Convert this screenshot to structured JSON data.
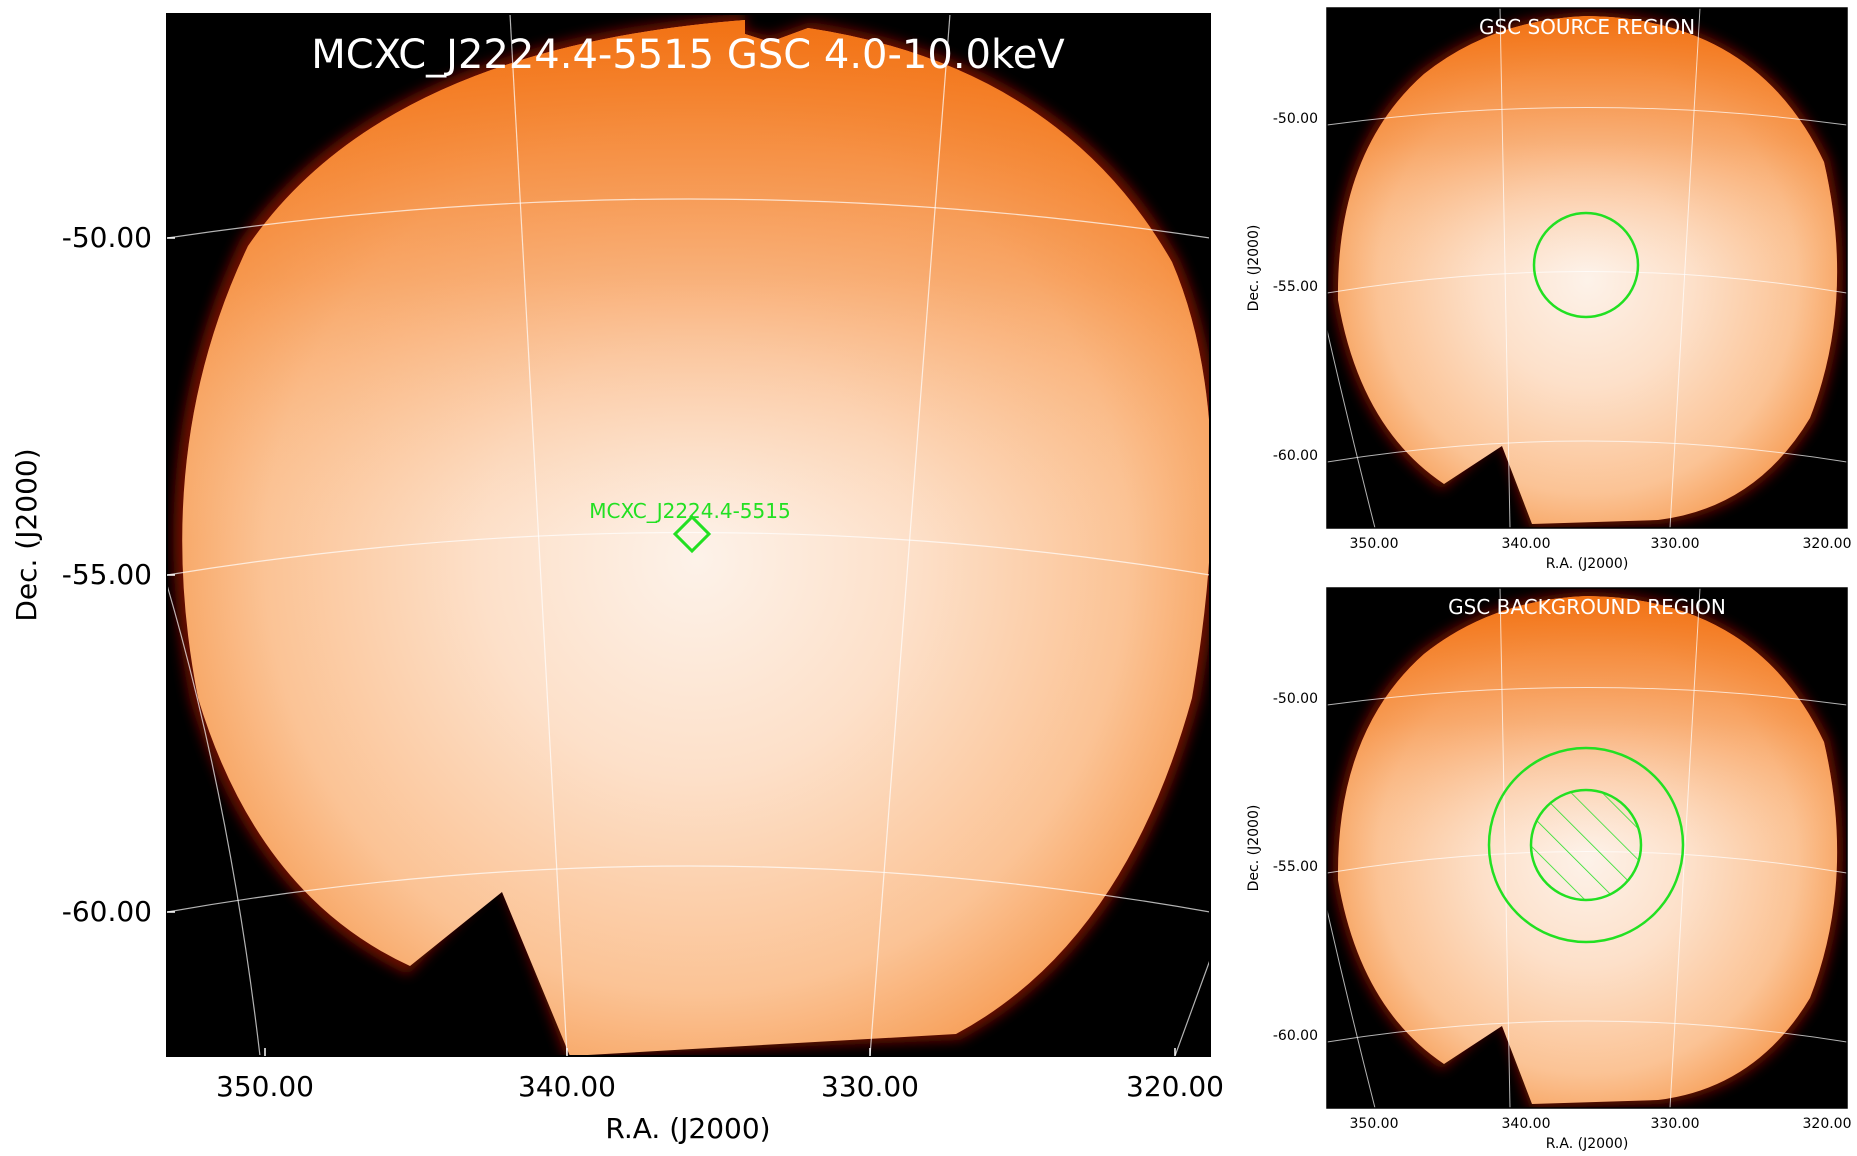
{
  "main": {
    "title": "MCXC_J2224.4-5515 GSC 4.0-10.0keV",
    "source_label": "MCXC_J2224.4-5515",
    "xlabel": "R.A. (J2000)",
    "ylabel": "Dec. (J2000)",
    "x_ticks": [
      "350.00",
      "340.00",
      "330.00",
      "320.00"
    ],
    "y_ticks": [
      "-50.00",
      "-55.00",
      "-60.00"
    ]
  },
  "source_panel": {
    "title": "GSC SOURCE REGION",
    "xlabel": "R.A. (J2000)",
    "ylabel": "Dec. (J2000)",
    "x_ticks": [
      "350.00",
      "340.00",
      "330.00",
      "320.00"
    ],
    "y_ticks": [
      "-50.00",
      "-55.00",
      "-60.00"
    ]
  },
  "background_panel": {
    "title": "GSC BACKGROUND REGION",
    "xlabel": "R.A. (J2000)",
    "ylabel": "Dec. (J2000)",
    "x_ticks": [
      "350.00",
      "340.00",
      "330.00",
      "320.00"
    ],
    "y_ticks": [
      "-50.00",
      "-55.00",
      "-60.00"
    ]
  },
  "colors": {
    "region": "#22e022",
    "sky_bright": "#fdf0e6",
    "sky_mid": "#fbc79f",
    "sky_edge": "#f07a1e",
    "rim": "#6a0d00",
    "background": "#000000"
  }
}
